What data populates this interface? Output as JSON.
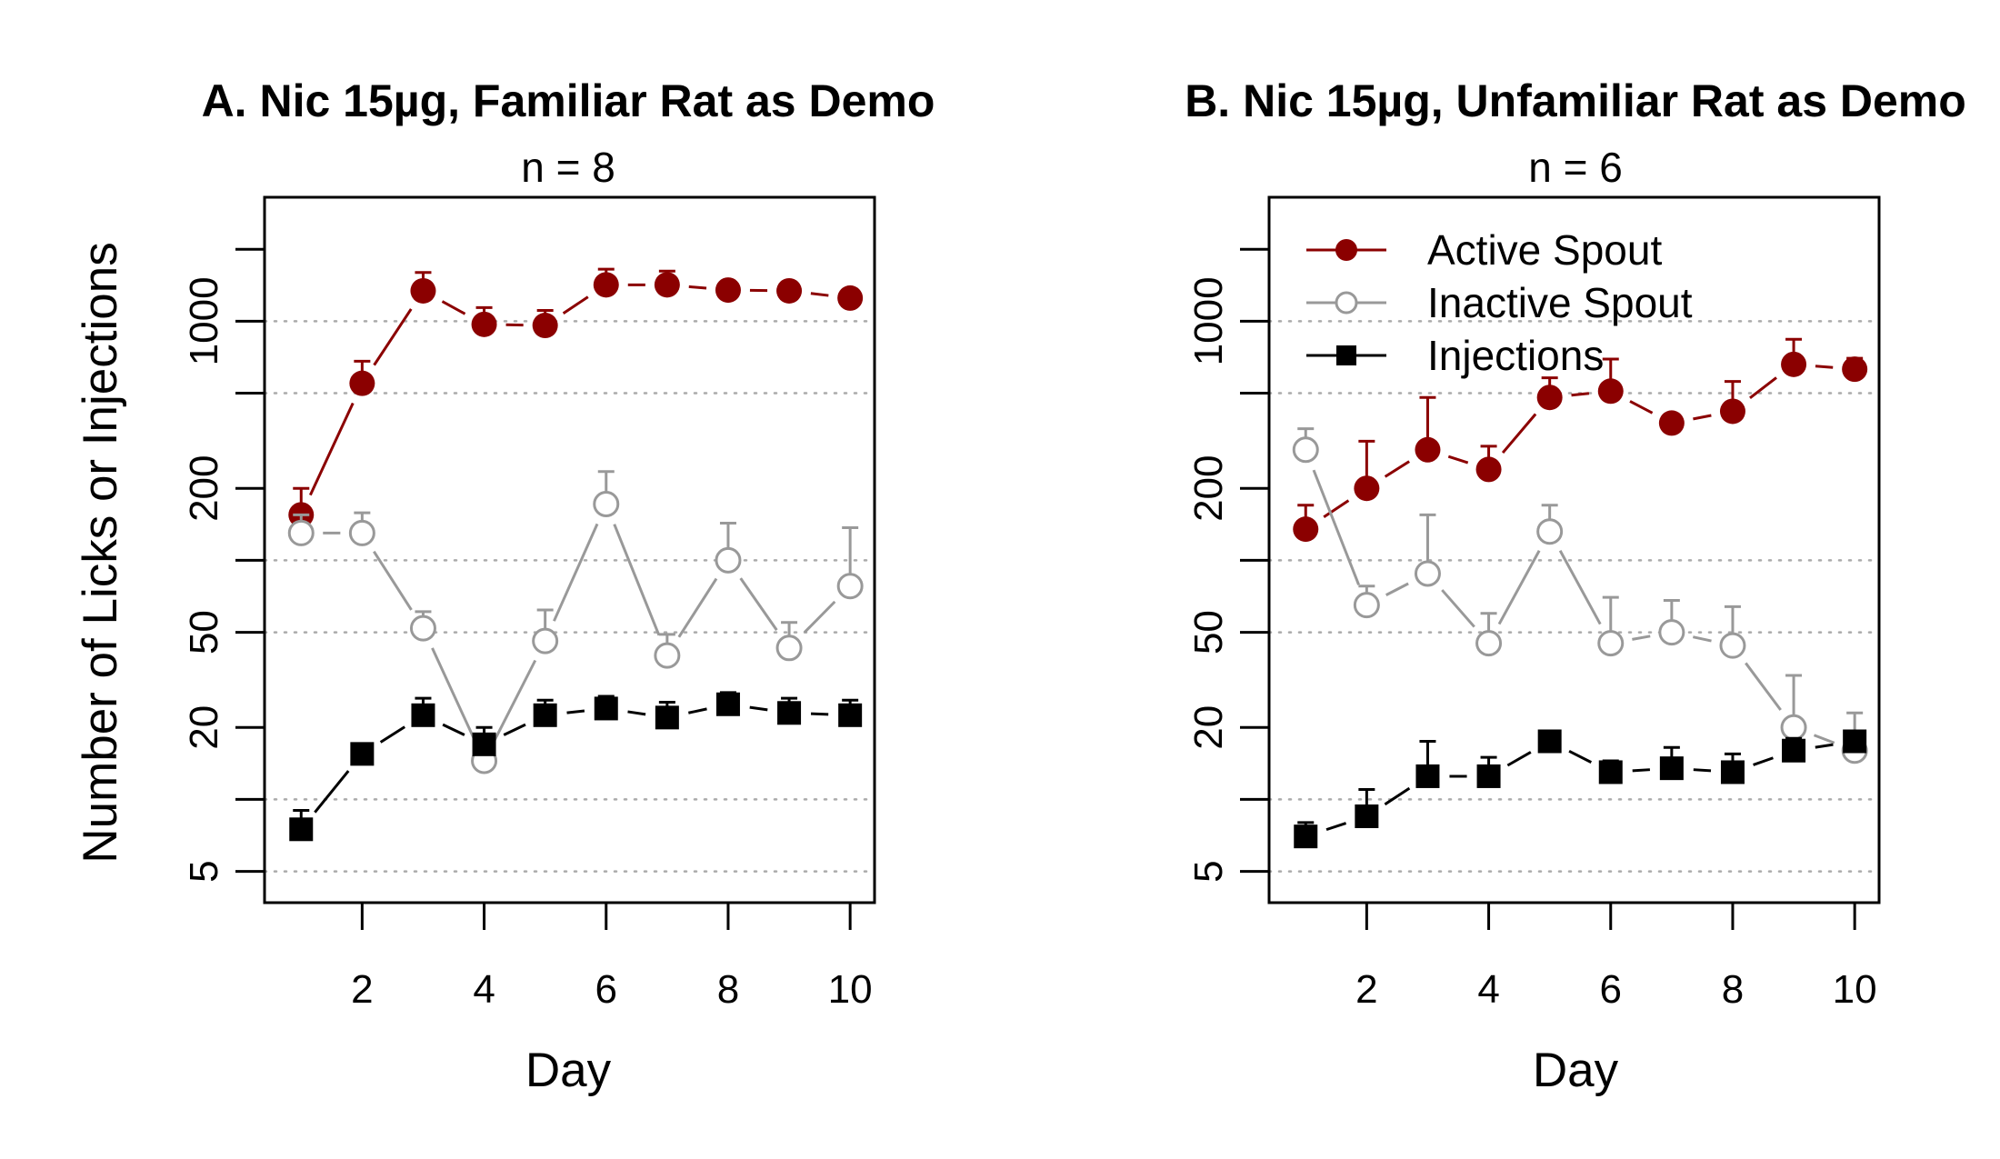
{
  "chart_data": [
    {
      "type": "line",
      "title": "A. Nic 15µg, Familiar Rat as Demo",
      "subtitle": "n = 8",
      "xlabel": "Day",
      "ylabel": "Number of Licks or Injections",
      "y_scale": "log",
      "xlim": [
        0.4,
        10.4
      ],
      "ylim": [
        3.7,
        3300
      ],
      "x_ticks": [
        2,
        4,
        6,
        8,
        10
      ],
      "y_ticks": [
        5,
        10,
        20,
        50,
        100,
        200,
        500,
        1000,
        2000
      ],
      "y_tick_labels": [
        "5",
        "",
        "20",
        "50",
        "",
        "200",
        "",
        "1000",
        ""
      ],
      "gridlines_y": [
        5,
        10,
        50,
        100,
        500,
        1000
      ],
      "grid": "horizontal dotted",
      "legend": null,
      "x": [
        1,
        2,
        3,
        4,
        5,
        6,
        7,
        8,
        9,
        10
      ],
      "series": [
        {
          "name": "Active Spout",
          "color": "#8b0000",
          "marker": "filled-circle",
          "values": [
            155,
            550,
            1340,
            970,
            960,
            1420,
            1420,
            1350,
            1340,
            1250
          ],
          "error_upper": [
            200,
            680,
            1600,
            1140,
            1110,
            1650,
            1620,
            1450,
            1450,
            1340
          ]
        },
        {
          "name": "Inactive Spout",
          "color": "#999999",
          "marker": "open-circle",
          "values": [
            130,
            130,
            52,
            14.5,
            46,
            172,
            40,
            100,
            43,
            78
          ],
          "error_upper": [
            155,
            158,
            61,
            18,
            62,
            235,
            49,
            143,
            55,
            137
          ]
        },
        {
          "name": "Injections",
          "color": "#000000",
          "marker": "filled-square",
          "values": [
            7.5,
            15.5,
            22.5,
            17,
            22.5,
            24,
            22,
            25,
            23,
            22.5
          ],
          "error_upper": [
            9,
            17,
            26.5,
            20,
            26,
            27,
            25.5,
            28,
            26.5,
            26
          ]
        }
      ]
    },
    {
      "type": "line",
      "title": "B. Nic 15µg, Unfamiliar Rat as Demo",
      "subtitle": "n = 6",
      "xlabel": "Day",
      "ylabel": "",
      "y_scale": "log",
      "xlim": [
        0.4,
        10.4
      ],
      "ylim": [
        3.7,
        3300
      ],
      "x_ticks": [
        2,
        4,
        6,
        8,
        10
      ],
      "y_ticks": [
        5,
        10,
        20,
        50,
        100,
        200,
        500,
        1000,
        2000
      ],
      "y_tick_labels": [
        "5",
        "",
        "20",
        "50",
        "",
        "200",
        "",
        "1000",
        ""
      ],
      "gridlines_y": [
        5,
        10,
        50,
        100,
        500,
        1000
      ],
      "grid": "horizontal dotted",
      "legend": "top-left",
      "x": [
        1,
        2,
        3,
        4,
        5,
        6,
        7,
        8,
        9,
        10
      ],
      "series": [
        {
          "name": "Active Spout",
          "color": "#8b0000",
          "marker": "filled-circle",
          "values": [
            135,
            200,
            290,
            240,
            480,
            510,
            375,
            420,
            660,
            630
          ],
          "error_upper": [
            170,
            315,
            480,
            300,
            580,
            695,
            375,
            560,
            840,
            700
          ]
        },
        {
          "name": "Inactive Spout",
          "color": "#999999",
          "marker": "open-circle",
          "values": [
            290,
            65,
            88,
            45,
            132,
            45,
            50,
            44,
            20,
            16
          ],
          "error_upper": [
            355,
            78,
            155,
            60,
            170,
            70,
            68,
            64,
            33,
            23
          ]
        },
        {
          "name": "Injections",
          "color": "#000000",
          "marker": "filled-square",
          "values": [
            7,
            8.5,
            12.5,
            12.5,
            17.5,
            13,
            13.5,
            13,
            16,
            17.5
          ],
          "error_upper": [
            8,
            11,
            17.5,
            15,
            19,
            14.5,
            16.5,
            15.5,
            18,
            19
          ]
        }
      ]
    }
  ]
}
